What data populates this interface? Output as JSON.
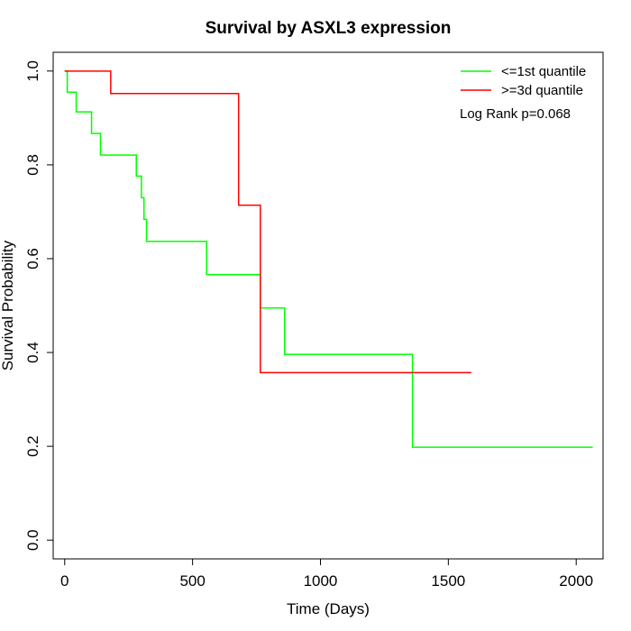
{
  "chart_data": {
    "type": "line",
    "step": true,
    "title": "Survival by ASXL3 expression",
    "xlabel": "Time (Days)",
    "ylabel": "Survival Probability",
    "xlim": [
      -45,
      2105
    ],
    "ylim": [
      -0.04,
      1.04
    ],
    "xticks": [
      0,
      500,
      1000,
      1500,
      2000
    ],
    "yticks": [
      0.0,
      0.2,
      0.4,
      0.6,
      0.8,
      1.0
    ],
    "xtick_labels": [
      "0",
      "500",
      "1000",
      "1500",
      "2000"
    ],
    "ytick_labels": [
      "0.0",
      "0.2",
      "0.4",
      "0.6",
      "0.8",
      "1.0"
    ],
    "grid": false,
    "legend_position": "top-right",
    "annotation": "Log Rank p=0.068",
    "series": [
      {
        "name": "<=1st quantile",
        "color": "#00ff00",
        "x": [
          0,
          10,
          45,
          105,
          140,
          280,
          300,
          310,
          320,
          330,
          555,
          765,
          860,
          1360,
          2065
        ],
        "y": [
          1.0,
          0.955,
          0.913,
          0.867,
          0.821,
          0.776,
          0.73,
          0.684,
          0.637,
          0.637,
          0.566,
          0.495,
          0.396,
          0.198,
          0.198
        ]
      },
      {
        "name": ">=3d quantile",
        "color": "#ff0000",
        "x": [
          0,
          180,
          680,
          765,
          1590
        ],
        "y": [
          1.0,
          0.952,
          0.714,
          0.357,
          0.357
        ]
      }
    ]
  }
}
